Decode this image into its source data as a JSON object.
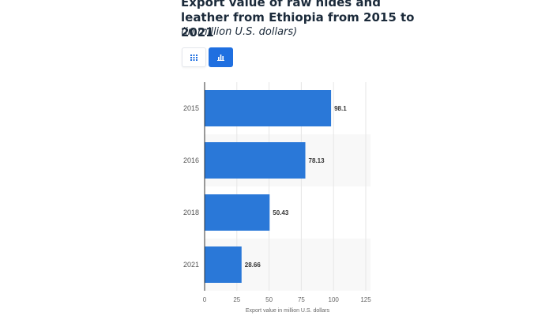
{
  "header": {
    "title": "Export value of raw hides and leather from Ethiopia from 2015 to 2021",
    "subtitle": "(in million U.S. dollars)"
  },
  "toolbar": {
    "table_view_icon": "table-grid-icon",
    "chart_view_icon": "bar-chart-icon",
    "active": "chart"
  },
  "colors": {
    "bar": "#2a78d8",
    "active_toggle": "#1f6fe0",
    "band": "#f8f8f8",
    "grid": "#e6e6e6",
    "title": "#1b2a3a"
  },
  "chart_data": {
    "type": "bar",
    "orientation": "horizontal",
    "categories": [
      "2015",
      "2016",
      "2018",
      "2021"
    ],
    "values": [
      98.1,
      78.13,
      50.43,
      28.66
    ],
    "value_labels": [
      "98.1",
      "78.13",
      "50.43",
      "28.66"
    ],
    "title": "",
    "xlabel": "Export value in million U.S. dollars",
    "ylabel": "",
    "xlim": [
      0,
      125
    ],
    "xticks": [
      0,
      25,
      50,
      75,
      100,
      125
    ],
    "xtick_labels": [
      "0",
      "25",
      "50",
      "75",
      "100",
      "125"
    ],
    "grid": true
  }
}
